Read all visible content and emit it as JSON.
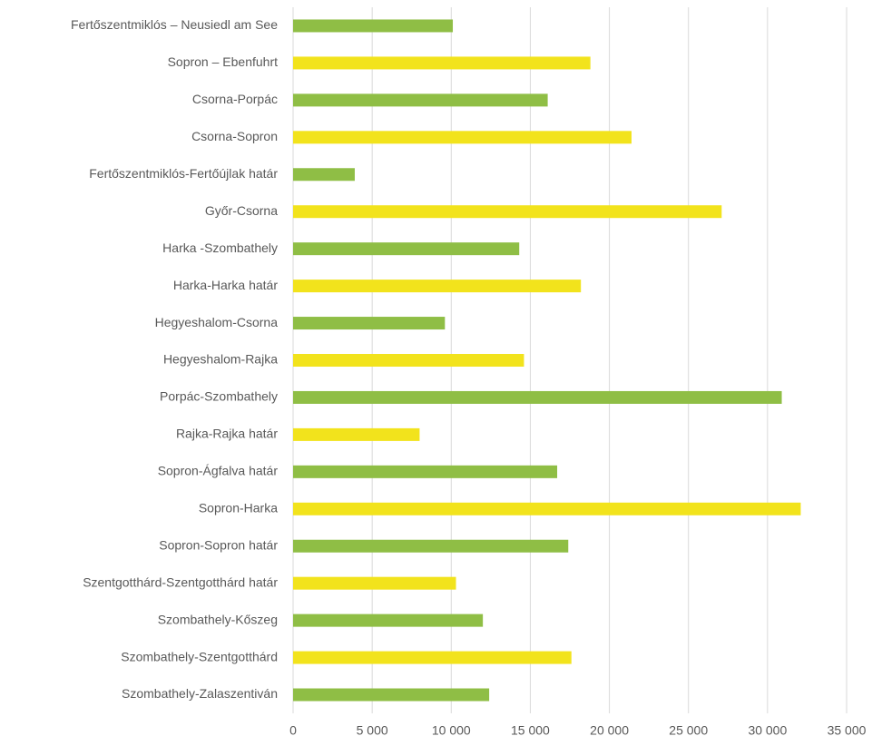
{
  "chart_data": {
    "type": "barh",
    "categories": [
      "Fertőszentmiklós – Neusiedl am See",
      "Sopron – Ebenfuhrt",
      "Csorna-Porpác",
      "Csorna-Sopron",
      "Fertőszentmiklós-Fertőújlak határ",
      "Győr-Csorna",
      "Harka -Szombathely",
      "Harka-Harka határ",
      "Hegyeshalom-Csorna",
      "Hegyeshalom-Rajka",
      "Porpác-Szombathely",
      "Rajka-Rajka határ",
      "Sopron-Ágfalva határ",
      "Sopron-Harka",
      "Sopron-Sopron határ",
      "Szentgotthárd-Szentgotthárd határ",
      "Szombathely-Kőszeg",
      "Szombathely-Szentgotthárd",
      "Szombathely-Zalaszentiván"
    ],
    "values": [
      10100,
      18800,
      16100,
      21400,
      3900,
      27100,
      14300,
      18200,
      9600,
      14600,
      30900,
      8000,
      16700,
      32100,
      17400,
      10300,
      12000,
      17600,
      12400
    ],
    "colors": [
      "#8fbe45",
      "#f2e31c"
    ],
    "xlim": [
      0,
      35000
    ],
    "xticks": [
      0,
      {
        "value": 5000,
        "label": "5 000"
      },
      {
        "value": 10000,
        "label": "10 000"
      },
      {
        "value": 15000,
        "label": "15 000"
      },
      {
        "value": 20000,
        "label": "20 000"
      },
      {
        "value": 25000,
        "label": "25 000"
      },
      {
        "value": 30000,
        "label": "30 000"
      },
      {
        "value": 35000,
        "label": "35 000"
      }
    ],
    "grid": true
  }
}
